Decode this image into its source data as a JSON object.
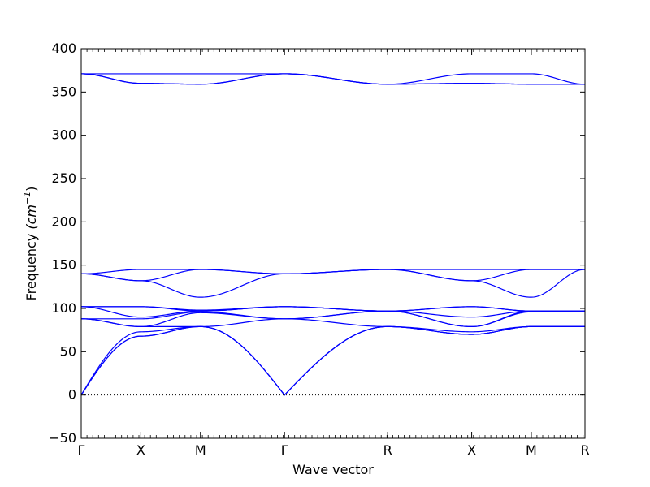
{
  "chart_data": {
    "type": "line",
    "xlabel": "Wave vector",
    "ylabel_text": "Frequency ",
    "ylabel_unit": "(cm",
    "ylabel_exp": "−1",
    "ylabel_close": ")",
    "ylim": [
      -50,
      400
    ],
    "yticks": [
      -50,
      0,
      50,
      100,
      150,
      200,
      250,
      300,
      350,
      400
    ],
    "xlim": [
      0,
      8.45
    ],
    "xticks": [
      {
        "label": "Γ",
        "x": 0
      },
      {
        "label": "X",
        "x": 1
      },
      {
        "label": "M",
        "x": 2
      },
      {
        "label": "Γ",
        "x": 3.41
      },
      {
        "label": "R",
        "x": 5.14
      },
      {
        "label": "X",
        "x": 6.55
      },
      {
        "label": "M",
        "x": 7.55
      },
      {
        "label": "R",
        "x": 8.45
      }
    ],
    "zero_line": "dotted",
    "line_color": "#0000ff",
    "series": [
      {
        "x": [
          0,
          1,
          2,
          3.41,
          5.14,
          6.55,
          7.55,
          8.45
        ],
        "values": [
          371,
          371,
          371,
          371,
          359,
          371,
          371,
          359
        ]
      },
      {
        "x": [
          0,
          1,
          2,
          3.41,
          5.14,
          6.55,
          7.55,
          8.45
        ],
        "values": [
          371,
          360,
          359,
          371,
          359,
          360,
          359,
          359
        ]
      },
      {
        "x": [
          0,
          1,
          2,
          3.41,
          5.14,
          6.55,
          7.55,
          8.45
        ],
        "values": [
          371,
          360,
          359,
          371,
          359,
          360,
          359,
          359
        ]
      },
      {
        "x": [
          0,
          1,
          2,
          3.41,
          5.14,
          6.55,
          7.55,
          8.45
        ],
        "values": [
          140,
          145,
          145,
          140,
          145,
          145,
          145,
          145
        ]
      },
      {
        "x": [
          0,
          1,
          2,
          3.41,
          5.14,
          6.55,
          7.55,
          8.45
        ],
        "values": [
          140,
          132,
          145,
          140,
          145,
          132,
          145,
          145
        ]
      },
      {
        "x": [
          0,
          1,
          2,
          3.41,
          5.14,
          6.55,
          7.55,
          8.45
        ],
        "values": [
          140,
          132,
          113,
          140,
          145,
          132,
          113,
          145
        ]
      },
      {
        "x": [
          0,
          1,
          2,
          3.41,
          5.14,
          6.55,
          7.55,
          8.45
        ],
        "values": [
          102,
          102,
          98,
          102,
          97,
          102,
          97,
          97
        ]
      },
      {
        "x": [
          0,
          1,
          2,
          3.41,
          5.14,
          6.55,
          7.55,
          8.45
        ],
        "values": [
          102,
          102,
          97,
          102,
          97,
          102,
          97,
          97
        ]
      },
      {
        "x": [
          0,
          1,
          2,
          3.41,
          5.14,
          6.55,
          7.55,
          8.45
        ],
        "values": [
          102,
          90,
          97,
          102,
          97,
          90,
          97,
          97
        ]
      },
      {
        "x": [
          0,
          1,
          2,
          3.41,
          5.14,
          6.55,
          7.55,
          8.45
        ],
        "values": [
          88,
          88,
          96,
          88,
          97,
          79,
          97,
          97
        ]
      },
      {
        "x": [
          0,
          1,
          2,
          3.41,
          5.14,
          6.55,
          7.55,
          8.45
        ],
        "values": [
          88,
          79,
          95,
          88,
          97,
          79,
          96,
          97
        ]
      },
      {
        "x": [
          0,
          1,
          2,
          3.41,
          5.14,
          6.55,
          7.55,
          8.45
        ],
        "values": [
          88,
          79,
          79,
          88,
          79,
          73,
          79,
          79
        ]
      },
      {
        "x": [
          0,
          1,
          2,
          3.41,
          5.14,
          6.55,
          7.55,
          8.45
        ],
        "values": [
          0,
          73,
          79,
          0,
          79,
          70,
          79,
          79
        ]
      },
      {
        "x": [
          0,
          1,
          2,
          3.41,
          5.14,
          6.55,
          7.55,
          8.45
        ],
        "values": [
          0,
          68,
          79,
          0,
          79,
          70,
          79,
          79
        ]
      },
      {
        "x": [
          0,
          1,
          2,
          3.41,
          5.14,
          6.55,
          7.55,
          8.45
        ],
        "values": [
          0,
          68,
          79,
          0,
          79,
          70,
          79,
          79
        ]
      }
    ]
  }
}
